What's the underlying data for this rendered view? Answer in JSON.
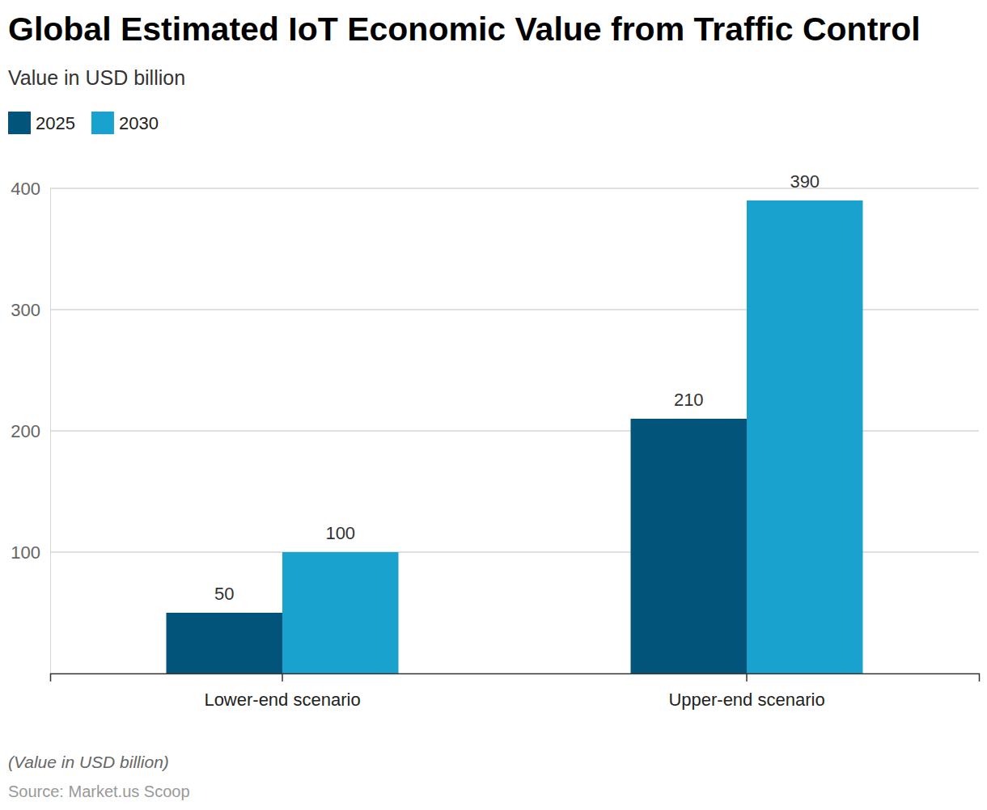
{
  "chart_data": {
    "type": "bar",
    "title": "Global Estimated IoT Economic Value from Traffic Control",
    "subtitle": "Value in USD billion",
    "categories": [
      "Lower-end scenario",
      "Upper-end scenario"
    ],
    "series": [
      {
        "name": "2025",
        "color": "#02547b",
        "values": [
          50,
          210
        ]
      },
      {
        "name": "2030",
        "color": "#1aa2cf",
        "values": [
          100,
          390
        ]
      }
    ],
    "ylim": [
      0,
      400
    ],
    "yticks": [
      100,
      200,
      300,
      400
    ],
    "grid": true,
    "legend": "top-left",
    "data_labels": true,
    "caption": "(Value in USD billion)",
    "source": "Source: Market.us Scoop"
  }
}
